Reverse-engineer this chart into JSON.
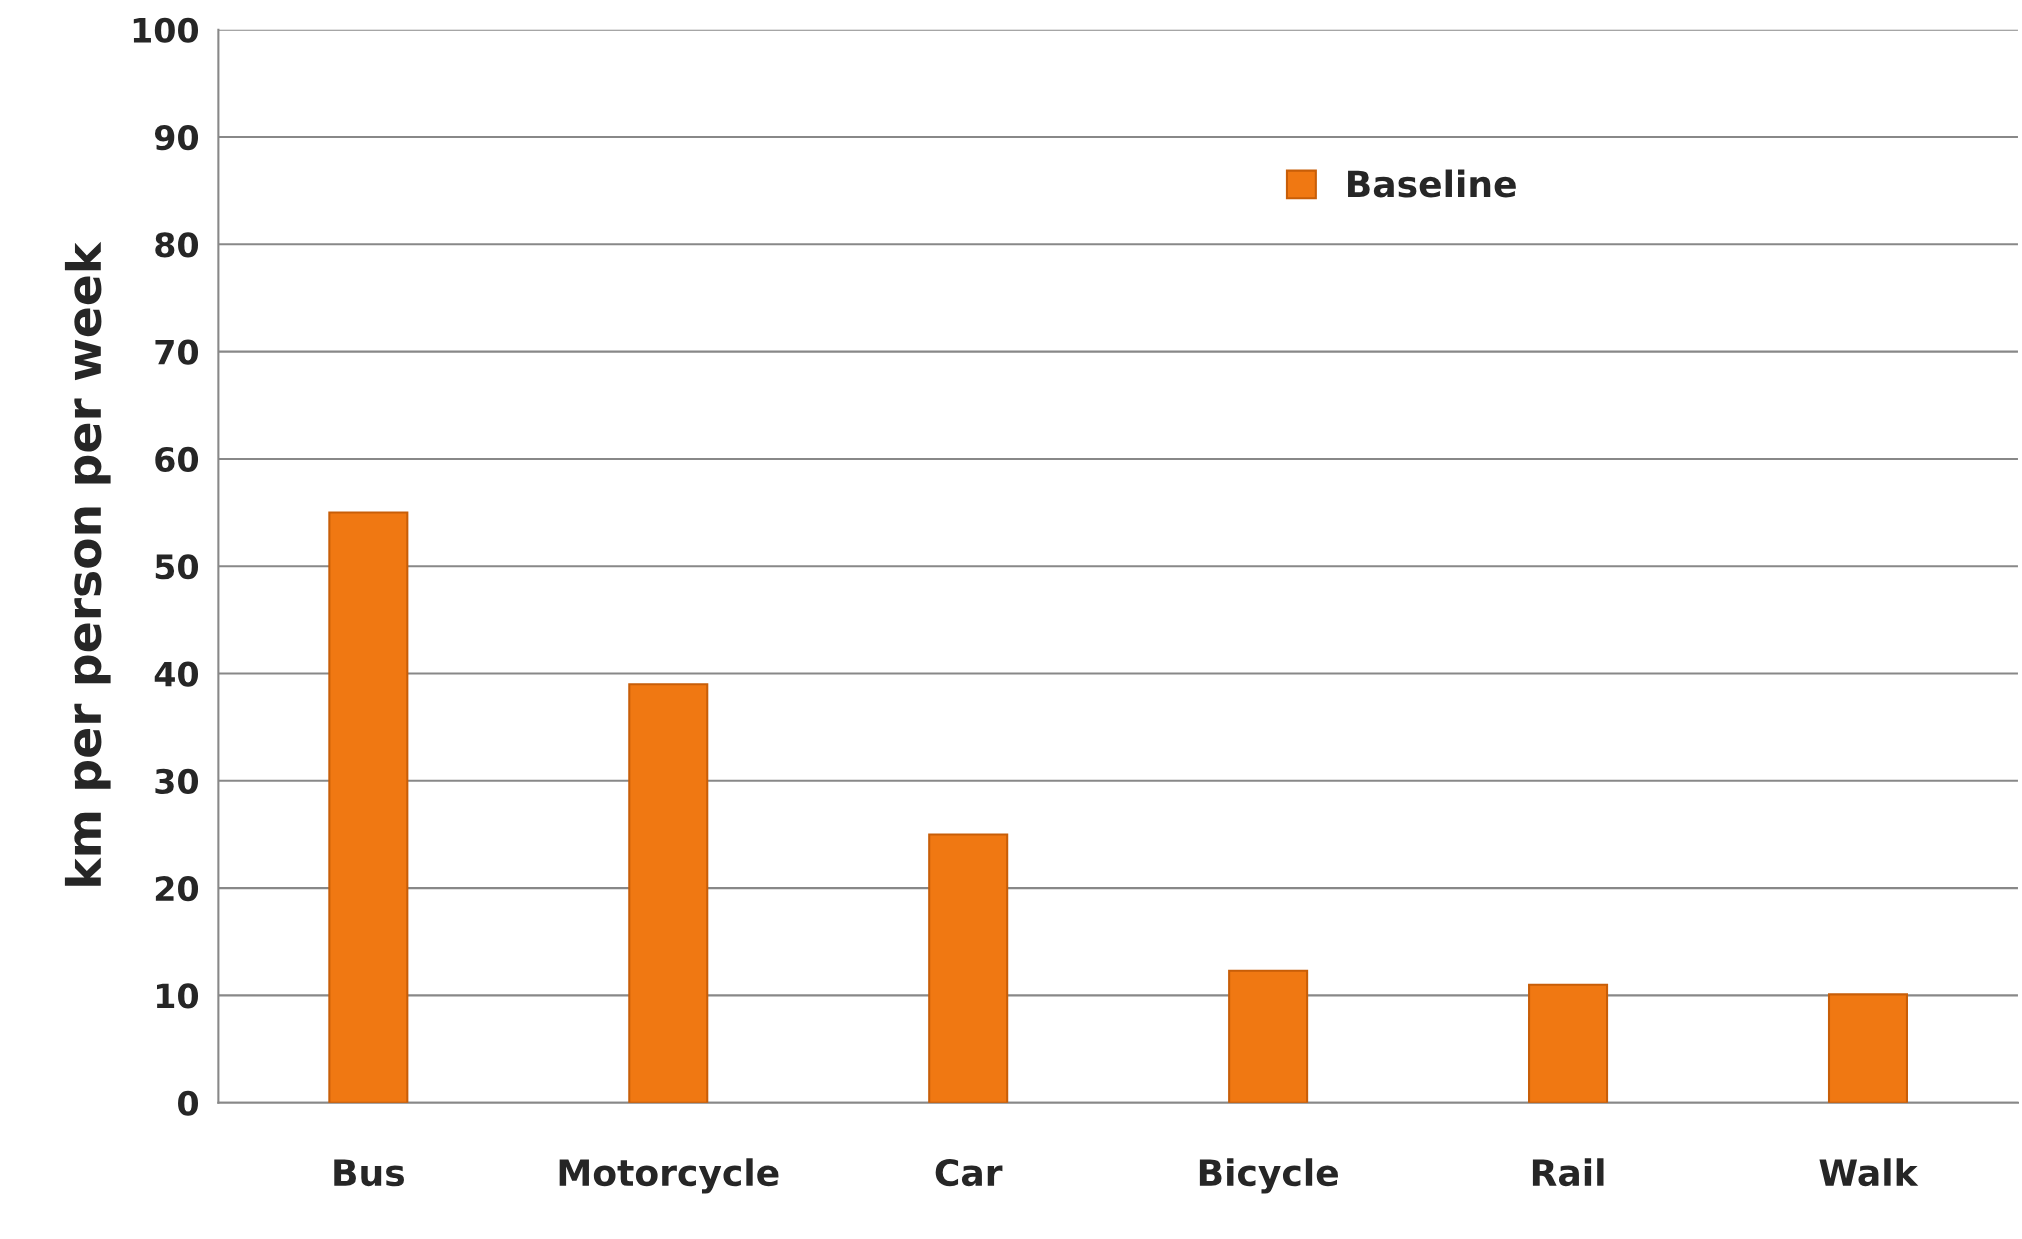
{
  "chart_data": {
    "type": "bar",
    "ylabel": "km per person per week",
    "categories": [
      "Bus",
      "Motorcycle",
      "Car",
      "Bicycle",
      "Rail",
      "Walk"
    ],
    "series": [
      {
        "name": "Baseline",
        "color": "#f07812",
        "values": [
          55,
          39,
          25,
          12.3,
          11,
          10.1
        ]
      }
    ],
    "ylim": [
      0,
      100
    ],
    "yticks": [
      0,
      10,
      20,
      30,
      40,
      50,
      60,
      70,
      80,
      90,
      100
    ],
    "grid": "y",
    "legend": "top right"
  }
}
